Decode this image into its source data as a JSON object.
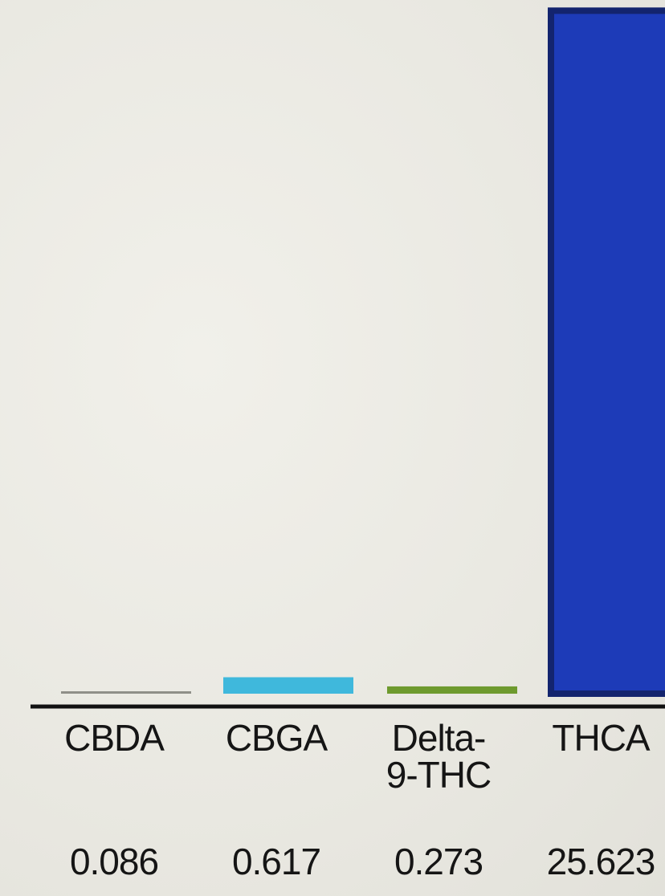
{
  "chart_data": {
    "type": "bar",
    "categories": [
      "CBDA",
      "CBGA",
      "Delta-\n9-THC",
      "THCA"
    ],
    "values": [
      0.086,
      0.617,
      0.273,
      25.623
    ],
    "value_labels": [
      "0.086",
      "0.617",
      "0.273",
      "25.623"
    ],
    "colors": [
      "#8f8f88",
      "#3fb8dc",
      "#6e9a2e",
      "#1d3bb8"
    ],
    "title": "",
    "xlabel": "",
    "ylabel": "",
    "grid": false,
    "legend": "none"
  }
}
